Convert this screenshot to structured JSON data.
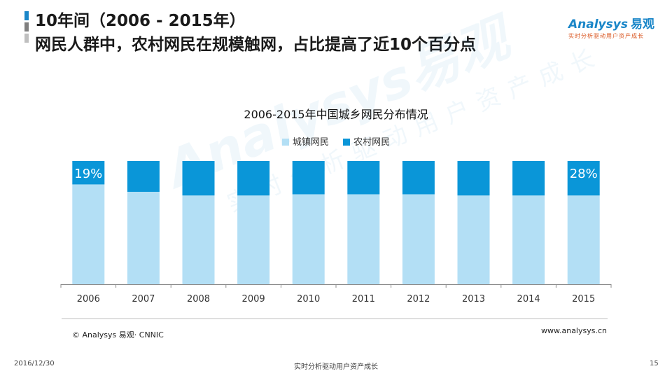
{
  "header": {
    "title_line1": "10年间（2006 - 2015年）",
    "title_line2": "网民人群中，农村网民在规模触网，占比提高了近10个百分点",
    "accent_colors": [
      "#1a86c8",
      "#7f7f7f",
      "#bfbfbf"
    ]
  },
  "logo": {
    "brand": "Analysys",
    "brand_cn": "易观",
    "slogan": "实时分析驱动用户资产成长"
  },
  "watermark": {
    "brand": "Analysys易观",
    "slogan": "实时分析驱动用户资产成长"
  },
  "chart_data": {
    "type": "bar",
    "stacked": true,
    "percent": true,
    "title": "2006-2015年中国城乡网民分布情况",
    "categories": [
      "2006",
      "2007",
      "2008",
      "2009",
      "2010",
      "2011",
      "2012",
      "2013",
      "2014",
      "2015"
    ],
    "series": [
      {
        "name": "城镇网民",
        "color": "#b3dff5",
        "values": [
          81,
          75,
          72,
          72,
          73,
          73,
          73,
          72,
          72,
          72
        ]
      },
      {
        "name": "农村网民",
        "color": "#0a96d8",
        "values": [
          19,
          25,
          28,
          28,
          27,
          27,
          27,
          28,
          28,
          28
        ]
      }
    ],
    "data_labels": [
      {
        "category": "2006",
        "series": "农村网民",
        "text": "19%"
      },
      {
        "category": "2015",
        "series": "农村网民",
        "text": "28%"
      }
    ],
    "ylim": [
      0,
      100
    ],
    "grid": false,
    "legend": "top-center"
  },
  "footer": {
    "source": "© Analysys 易观· CNNIC",
    "site": "www.analysys.cn",
    "date": "2016/12/30",
    "slogan": "实时分析驱动用户资产成长",
    "page": "15"
  }
}
